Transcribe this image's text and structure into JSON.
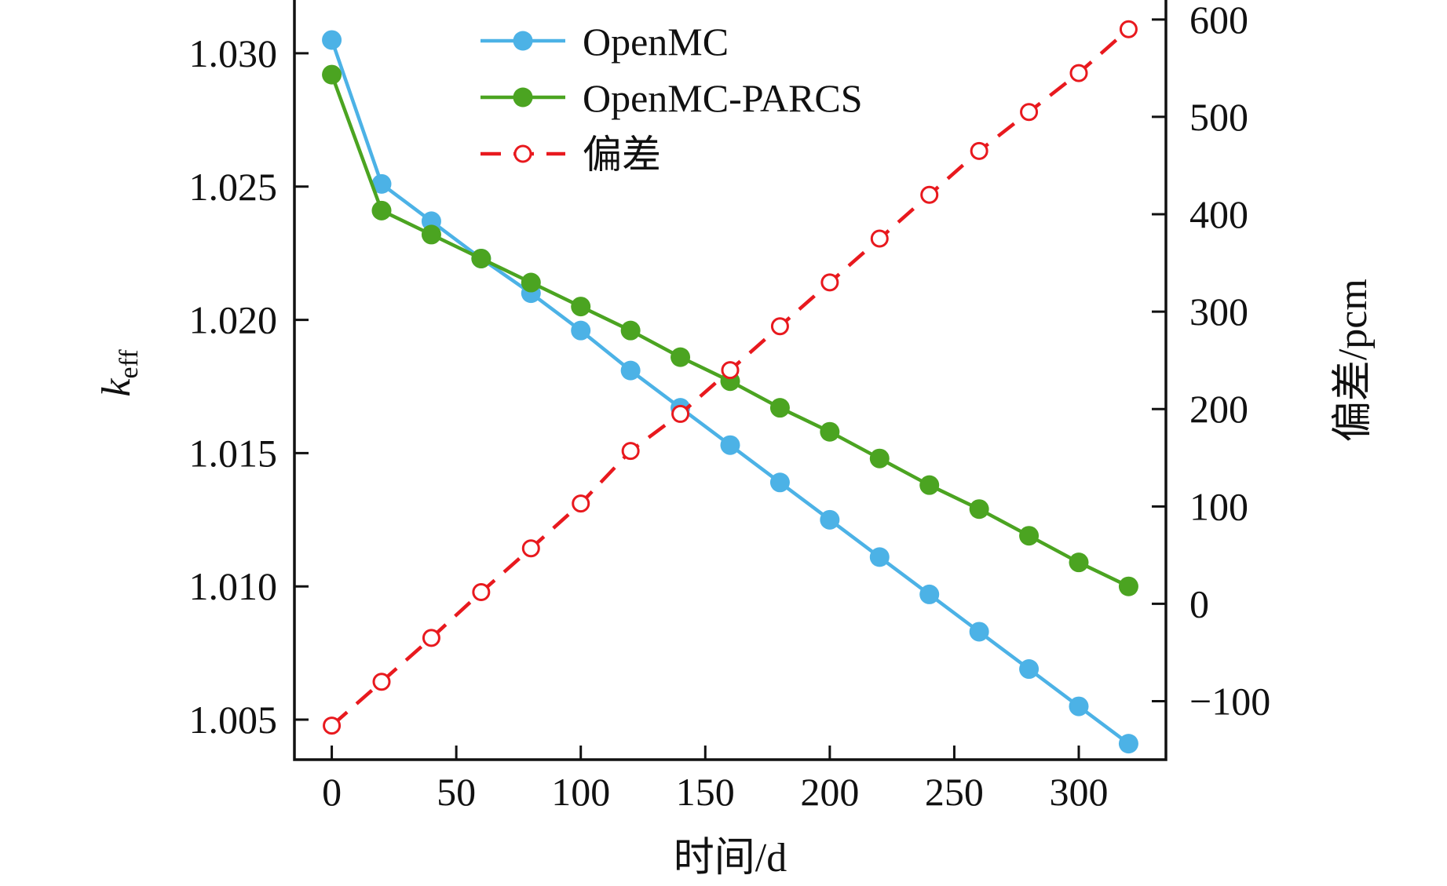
{
  "chart_data": {
    "type": "line",
    "x": [
      0,
      20,
      40,
      60,
      80,
      100,
      120,
      140,
      160,
      180,
      200,
      220,
      240,
      260,
      280,
      300,
      320
    ],
    "xlabel": "时间/d",
    "ylabel": {
      "base": "k",
      "subscript": "eff"
    },
    "y2label": "偏差/pcm",
    "xlim": [
      -15,
      335
    ],
    "ylim": [
      1.0035,
      1.032
    ],
    "y2lim": [
      -160,
      620
    ],
    "xticks": [
      0,
      50,
      100,
      150,
      200,
      250,
      300
    ],
    "yticks": [
      1.005,
      1.01,
      1.015,
      1.02,
      1.025,
      1.03
    ],
    "ytick_labels": [
      "1.005",
      "1.010",
      "1.015",
      "1.020",
      "1.025",
      "1.030"
    ],
    "y2ticks": [
      -100,
      0,
      100,
      200,
      300,
      400,
      500,
      600
    ],
    "y2tick_labels": [
      "−100",
      "0",
      "100",
      "200",
      "300",
      "400",
      "500",
      "600"
    ],
    "grid": false,
    "legend_position": "top-center",
    "series": [
      {
        "name": "OpenMC",
        "axis": "left",
        "color": "#4CB2E6",
        "line_style": "solid",
        "marker": "filled-circle",
        "values": [
          1.0305,
          1.0251,
          1.0237,
          1.0223,
          1.021,
          1.0196,
          1.0181,
          1.0167,
          1.0153,
          1.0139,
          1.0125,
          1.0111,
          1.0097,
          1.0083,
          1.0069,
          1.0055,
          1.0041
        ]
      },
      {
        "name": "OpenMC-PARCS",
        "axis": "left",
        "color": "#4BA421",
        "line_style": "solid",
        "marker": "filled-circle",
        "values": [
          1.0292,
          1.0241,
          1.0232,
          1.0223,
          1.0214,
          1.0205,
          1.0196,
          1.0186,
          1.0177,
          1.0167,
          1.0158,
          1.0148,
          1.0138,
          1.0129,
          1.0119,
          1.0109,
          1.01
        ]
      },
      {
        "name": "偏差",
        "axis": "right",
        "color": "#E8191E",
        "line_style": "dashed",
        "marker": "open-circle",
        "values": [
          -125,
          -80,
          -35,
          12,
          57,
          103,
          157,
          195,
          240,
          285,
          330,
          375,
          420,
          465,
          505,
          545,
          590
        ]
      }
    ]
  }
}
